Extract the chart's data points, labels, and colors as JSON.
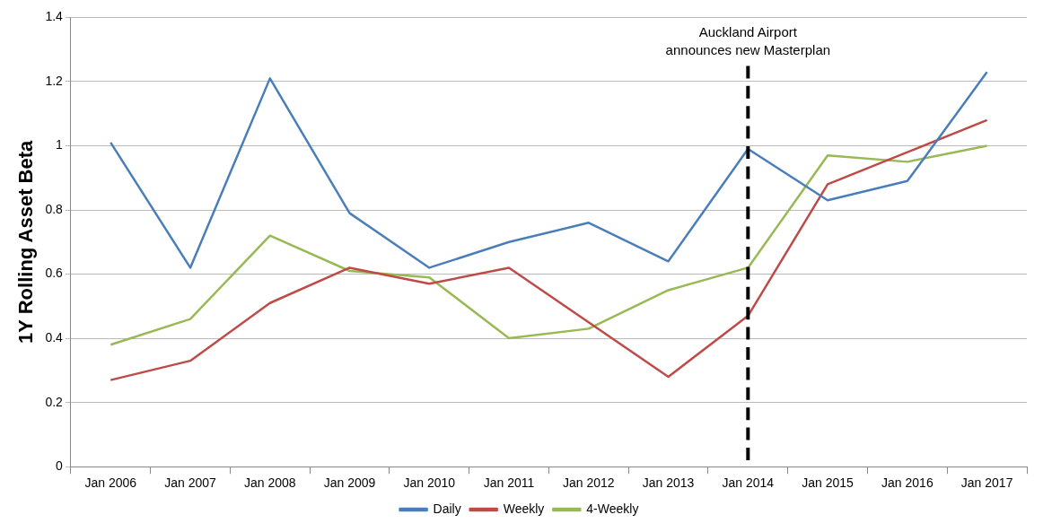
{
  "chart_data": {
    "type": "line",
    "ylabel": "1Y Rolling Asset Beta",
    "categories": [
      "Jan 2006",
      "Jan 2007",
      "Jan 2008",
      "Jan 2009",
      "Jan 2010",
      "Jan 2011",
      "Jan 2012",
      "Jan 2013",
      "Jan 2014",
      "Jan 2015",
      "Jan 2016",
      "Jan 2017"
    ],
    "series": [
      {
        "name": "Daily",
        "color": "#4a7ebb",
        "values": [
          1.01,
          0.62,
          1.21,
          0.79,
          0.62,
          0.7,
          0.76,
          0.64,
          0.99,
          0.83,
          0.89,
          1.23
        ]
      },
      {
        "name": "Weekly",
        "color": "#be4b48",
        "values": [
          0.27,
          0.33,
          0.51,
          0.62,
          0.57,
          0.62,
          0.45,
          0.28,
          0.47,
          0.88,
          0.98,
          1.08
        ]
      },
      {
        "name": "4-Weekly",
        "color": "#98b954",
        "values": [
          0.38,
          0.46,
          0.72,
          0.61,
          0.59,
          0.4,
          0.43,
          0.55,
          0.62,
          0.97,
          0.95,
          1.0
        ]
      }
    ],
    "ylim": [
      0,
      1.4
    ],
    "yticks": [
      0,
      0.2,
      0.4,
      0.6,
      0.8,
      1,
      1.2,
      1.4
    ],
    "grid": "y",
    "legend": "bottom",
    "marker": "none",
    "line_style": "solid",
    "ref_lines": [
      {
        "axis": "x",
        "value": "Jan 2014",
        "label": "Auckland Airport\nannounces new Masterplan",
        "color": "#000000",
        "line_style": "dashed"
      }
    ]
  }
}
